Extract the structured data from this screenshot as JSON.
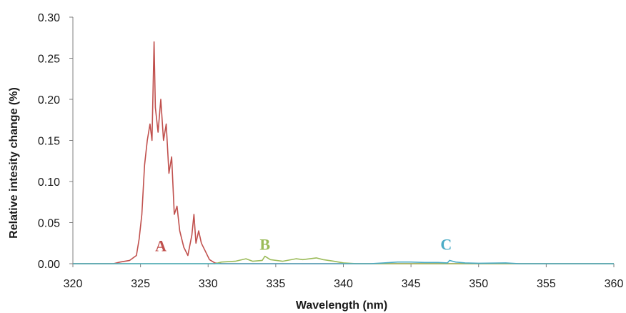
{
  "chart_data": {
    "type": "line",
    "xlabel": "Wavelength (nm)",
    "ylabel": "Relative intesity change (%)",
    "xlim": [
      320,
      360
    ],
    "ylim": [
      0,
      0.3
    ],
    "x_ticks": [
      "320",
      "325",
      "330",
      "335",
      "340",
      "345",
      "350",
      "355",
      "360"
    ],
    "y_ticks": [
      "0.00",
      "0.05",
      "0.10",
      "0.15",
      "0.20",
      "0.25",
      "0.30"
    ],
    "grid": false,
    "legend": "none",
    "series": [
      {
        "color": "#c0504d",
        "points": [
          [
            320,
            0
          ],
          [
            323,
            0
          ],
          [
            323.5,
            0.002
          ],
          [
            324.2,
            0.004
          ],
          [
            324.7,
            0.01
          ],
          [
            324.9,
            0.03
          ],
          [
            325.1,
            0.06
          ],
          [
            325.3,
            0.12
          ],
          [
            325.5,
            0.15
          ],
          [
            325.7,
            0.17
          ],
          [
            325.85,
            0.15
          ],
          [
            326.0,
            0.27
          ],
          [
            326.1,
            0.19
          ],
          [
            326.3,
            0.16
          ],
          [
            326.5,
            0.2
          ],
          [
            326.7,
            0.15
          ],
          [
            326.9,
            0.17
          ],
          [
            327.1,
            0.11
          ],
          [
            327.3,
            0.13
          ],
          [
            327.5,
            0.06
          ],
          [
            327.7,
            0.07
          ],
          [
            327.9,
            0.04
          ],
          [
            328.2,
            0.02
          ],
          [
            328.5,
            0.01
          ],
          [
            328.8,
            0.035
          ],
          [
            328.95,
            0.06
          ],
          [
            329.1,
            0.025
          ],
          [
            329.3,
            0.04
          ],
          [
            329.5,
            0.025
          ],
          [
            329.8,
            0.015
          ],
          [
            330.1,
            0.005
          ],
          [
            330.5,
            0.001
          ],
          [
            331,
            0
          ],
          [
            360,
            0
          ]
        ]
      },
      {
        "color": "#9bbb59",
        "points": [
          [
            320,
            0
          ],
          [
            330.5,
            0
          ],
          [
            331,
            0.002
          ],
          [
            332,
            0.003
          ],
          [
            332.8,
            0.006
          ],
          [
            333.3,
            0.003
          ],
          [
            334,
            0.004
          ],
          [
            334.2,
            0.009
          ],
          [
            334.6,
            0.005
          ],
          [
            335.5,
            0.003
          ],
          [
            336.5,
            0.006
          ],
          [
            337,
            0.005
          ],
          [
            338,
            0.007
          ],
          [
            338.5,
            0.005
          ],
          [
            339.3,
            0.003
          ],
          [
            340,
            0.001
          ],
          [
            341,
            0
          ],
          [
            360,
            0
          ]
        ]
      },
      {
        "color": "#4bacc6",
        "points": [
          [
            320,
            0
          ],
          [
            342,
            0
          ],
          [
            343,
            0.001
          ],
          [
            344,
            0.002
          ],
          [
            345,
            0.002
          ],
          [
            346,
            0.0015
          ],
          [
            347,
            0.0015
          ],
          [
            347.7,
            0.001
          ],
          [
            347.85,
            0.004
          ],
          [
            348.3,
            0.002
          ],
          [
            349,
            0.001
          ],
          [
            350,
            0.0005
          ],
          [
            352,
            0.001
          ],
          [
            353,
            0
          ],
          [
            360,
            0
          ]
        ]
      }
    ],
    "annotations": [
      {
        "text": "A",
        "x": 326.5,
        "y": 0.022,
        "color": "#c0504d"
      },
      {
        "text": "B",
        "x": 334.2,
        "y": 0.024,
        "color": "#9bbb59"
      },
      {
        "text": "C",
        "x": 347.6,
        "y": 0.024,
        "color": "#4bacc6"
      }
    ]
  }
}
